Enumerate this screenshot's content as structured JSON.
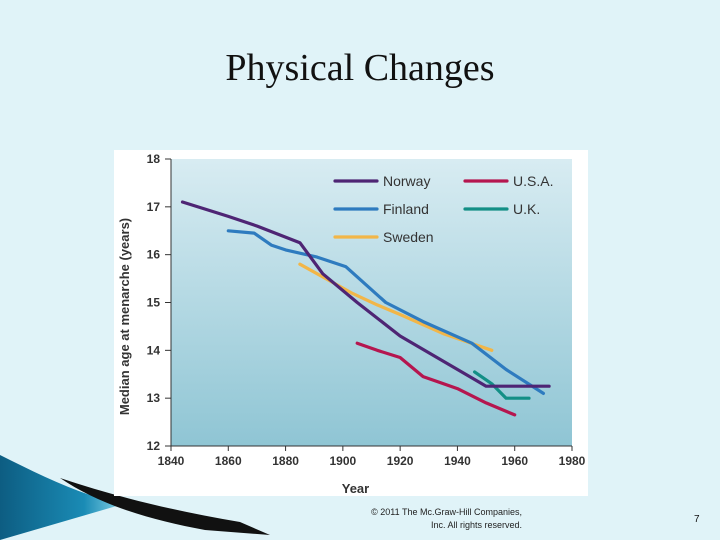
{
  "slide": {
    "title": "Physical Changes",
    "copyright_line1": "© 2011 The Mc.Graw-Hill Companies,",
    "copyright_line2": "Inc. All rights reserved.",
    "page_number": "7"
  },
  "colors": {
    "background": "#e0f3f8",
    "plot_top": "#d8ecf2",
    "plot_bottom": "#8fc5d4",
    "Norway": "#4e2574",
    "Finland": "#2e7bbf",
    "Sweden": "#f2b648",
    "U.S.A.": "#b5164f",
    "U.K.": "#138f86"
  },
  "chart_data": {
    "type": "line",
    "title": "",
    "xlabel": "Year",
    "ylabel": "Median age at menarche (years)",
    "xlim": [
      1840,
      1980
    ],
    "ylim": [
      12,
      18
    ],
    "xticks": [
      1840,
      1860,
      1880,
      1900,
      1920,
      1940,
      1960,
      1980
    ],
    "yticks": [
      12,
      13,
      14,
      15,
      16,
      17,
      18
    ],
    "grid": false,
    "legend": "top-right",
    "series": [
      {
        "name": "Norway",
        "x": [
          1844,
          1860,
          1870,
          1885,
          1893,
          1905,
          1920,
          1930,
          1950,
          1960,
          1972
        ],
        "y": [
          17.1,
          16.8,
          16.6,
          16.25,
          15.6,
          15.0,
          14.3,
          13.95,
          13.25,
          13.25,
          13.25
        ]
      },
      {
        "name": "Finland",
        "x": [
          1860,
          1869,
          1875,
          1880,
          1891,
          1901,
          1915,
          1928,
          1945,
          1957,
          1970
        ],
        "y": [
          16.5,
          16.45,
          16.2,
          16.1,
          15.95,
          15.75,
          15.0,
          14.6,
          14.15,
          13.6,
          13.1
        ]
      },
      {
        "name": "Sweden",
        "x": [
          1885,
          1903,
          1912,
          1920,
          1935,
          1952
        ],
        "y": [
          15.8,
          15.2,
          14.95,
          14.75,
          14.35,
          14.0
        ]
      },
      {
        "name": "U.S.A.",
        "x": [
          1905,
          1912,
          1920,
          1928,
          1940,
          1950,
          1960
        ],
        "y": [
          14.15,
          14.0,
          13.85,
          13.45,
          13.2,
          12.9,
          12.65
        ]
      },
      {
        "name": "U.K.",
        "x": [
          1946,
          1952,
          1957,
          1965
        ],
        "y": [
          13.55,
          13.3,
          13.0,
          13.0
        ]
      }
    ]
  }
}
